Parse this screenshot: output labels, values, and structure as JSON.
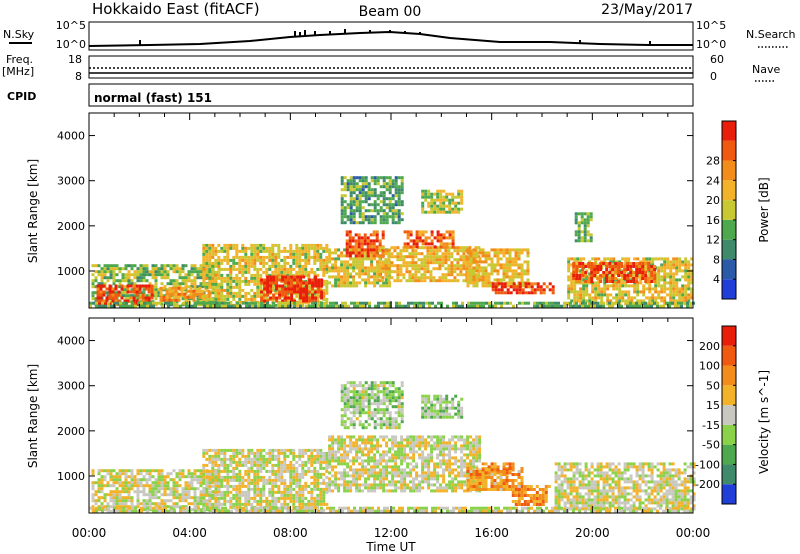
{
  "header": {
    "station": "Hokkaido East (fitACF)",
    "beam": "Beam 00",
    "date": "23/May/2017"
  },
  "strips": {
    "nsky_label": "N.Sky",
    "nsearch_label": "N.Search",
    "nsky_ticks": [
      "10^5",
      "10^0"
    ],
    "nsearch_ticks": [
      "10^5",
      "10^0"
    ],
    "freq_label": "Freq.",
    "freq_unit": "[MHz]",
    "freq_ticks": [
      "18",
      "8"
    ],
    "nave_label": "Nave",
    "nave_ticks": [
      "60",
      "0"
    ],
    "cpid_label": "CPID",
    "cpid_value": "normal (fast) 151"
  },
  "colors": {
    "power": [
      "#1f3fd8",
      "#2a5aa8",
      "#3f8a6a",
      "#4ea84e",
      "#c8c832",
      "#f2b32a",
      "#f28c1a",
      "#f05a10",
      "#e81e0a"
    ],
    "velocity": [
      "#e81e0a",
      "#f05a10",
      "#f28c1a",
      "#f2b32a",
      "#c8c8c0",
      "#8ad24a",
      "#4ea84e",
      "#3f8a6a",
      "#1f3fd8"
    ]
  },
  "chart_data": [
    {
      "type": "heatmap",
      "title": "",
      "xlabel": "Time UT",
      "ylabel": "Slant Range [km]",
      "x_ticks": [
        "00:00",
        "04:00",
        "08:00",
        "12:00",
        "16:00",
        "20:00",
        "00:00"
      ],
      "xlim_hours": [
        0,
        24
      ],
      "ylim": [
        180,
        4500
      ],
      "y_ticks": [
        1000,
        2000,
        3000,
        4000
      ],
      "colorbar": {
        "label": "Power [dB]",
        "ticks": [
          "4",
          "8",
          "12",
          "16",
          "20",
          "24",
          "28"
        ],
        "range": [
          0,
          30
        ]
      },
      "regions": [
        {
          "t0": 0.1,
          "t1": 5.2,
          "r0": 250,
          "r1": 1150,
          "level": 0.45
        },
        {
          "t0": 0.3,
          "t1": 2.5,
          "r0": 300,
          "r1": 700,
          "level": 0.9
        },
        {
          "t0": 2.8,
          "t1": 4.8,
          "r0": 350,
          "r1": 650,
          "level": 0.72
        },
        {
          "t0": 4.5,
          "t1": 9.5,
          "r0": 250,
          "r1": 1600,
          "level": 0.55
        },
        {
          "t0": 6.8,
          "t1": 9.3,
          "r0": 320,
          "r1": 900,
          "level": 0.92
        },
        {
          "t0": 9.5,
          "t1": 12.0,
          "r0": 700,
          "r1": 1500,
          "level": 0.55
        },
        {
          "t0": 10.2,
          "t1": 11.7,
          "r0": 1350,
          "r1": 1900,
          "level": 0.85
        },
        {
          "t0": 11.5,
          "t1": 15.5,
          "r0": 800,
          "r1": 1550,
          "level": 0.62
        },
        {
          "t0": 12.5,
          "t1": 14.5,
          "r0": 1550,
          "r1": 1900,
          "level": 0.8
        },
        {
          "t0": 15.0,
          "t1": 17.5,
          "r0": 700,
          "r1": 1500,
          "level": 0.6
        },
        {
          "t0": 16.0,
          "t1": 18.5,
          "r0": 550,
          "r1": 750,
          "level": 0.9
        },
        {
          "t0": 19.0,
          "t1": 24.0,
          "r0": 300,
          "r1": 1300,
          "level": 0.55
        },
        {
          "t0": 19.2,
          "t1": 22.5,
          "r0": 800,
          "r1": 1200,
          "level": 0.85
        },
        {
          "t0": 10.0,
          "t1": 12.5,
          "r0": 2100,
          "r1": 3100,
          "level": 0.35
        },
        {
          "t0": 13.2,
          "t1": 14.8,
          "r0": 2300,
          "r1": 2800,
          "level": 0.5
        },
        {
          "t0": 19.3,
          "t1": 20.0,
          "r0": 1700,
          "r1": 2300,
          "level": 0.4
        },
        {
          "t0": 0.0,
          "t1": 24.0,
          "r0": 190,
          "r1": 320,
          "level": 0.4
        }
      ]
    },
    {
      "type": "heatmap",
      "title": "",
      "xlabel": "Time UT",
      "ylabel": "Slant Range [km]",
      "x_ticks": [
        "00:00",
        "04:00",
        "08:00",
        "12:00",
        "16:00",
        "20:00",
        "00:00"
      ],
      "xlim_hours": [
        0,
        24
      ],
      "ylim": [
        180,
        4500
      ],
      "y_ticks": [
        1000,
        2000,
        3000,
        4000
      ],
      "colorbar": {
        "label": "Velocity [m s^-1]",
        "ticks": [
          "200",
          "100",
          "50",
          "15",
          "-15",
          "-50",
          "-100",
          "-200"
        ],
        "range": [
          -250,
          250
        ]
      },
      "regions": [
        {
          "t0": 0.1,
          "t1": 5.2,
          "r0": 250,
          "r1": 1150,
          "level": 0.5
        },
        {
          "t0": 4.5,
          "t1": 9.5,
          "r0": 250,
          "r1": 1600,
          "level": 0.5
        },
        {
          "t0": 9.5,
          "t1": 15.5,
          "r0": 700,
          "r1": 1900,
          "level": 0.5
        },
        {
          "t0": 15.0,
          "t1": 17.2,
          "r0": 700,
          "r1": 1200,
          "level": 0.3
        },
        {
          "t0": 15.6,
          "t1": 16.8,
          "r0": 1050,
          "r1": 1300,
          "level": 0.28
        },
        {
          "t0": 16.8,
          "t1": 18.3,
          "r0": 400,
          "r1": 800,
          "level": 0.3
        },
        {
          "t0": 18.5,
          "t1": 24.0,
          "r0": 300,
          "r1": 1300,
          "level": 0.5
        },
        {
          "t0": 10.0,
          "t1": 12.5,
          "r0": 2100,
          "r1": 3100,
          "level": 0.58
        },
        {
          "t0": 13.2,
          "t1": 14.8,
          "r0": 2300,
          "r1": 2800,
          "level": 0.6
        },
        {
          "t0": 0.0,
          "t1": 24.0,
          "r0": 190,
          "r1": 320,
          "level": 0.5
        }
      ]
    }
  ]
}
